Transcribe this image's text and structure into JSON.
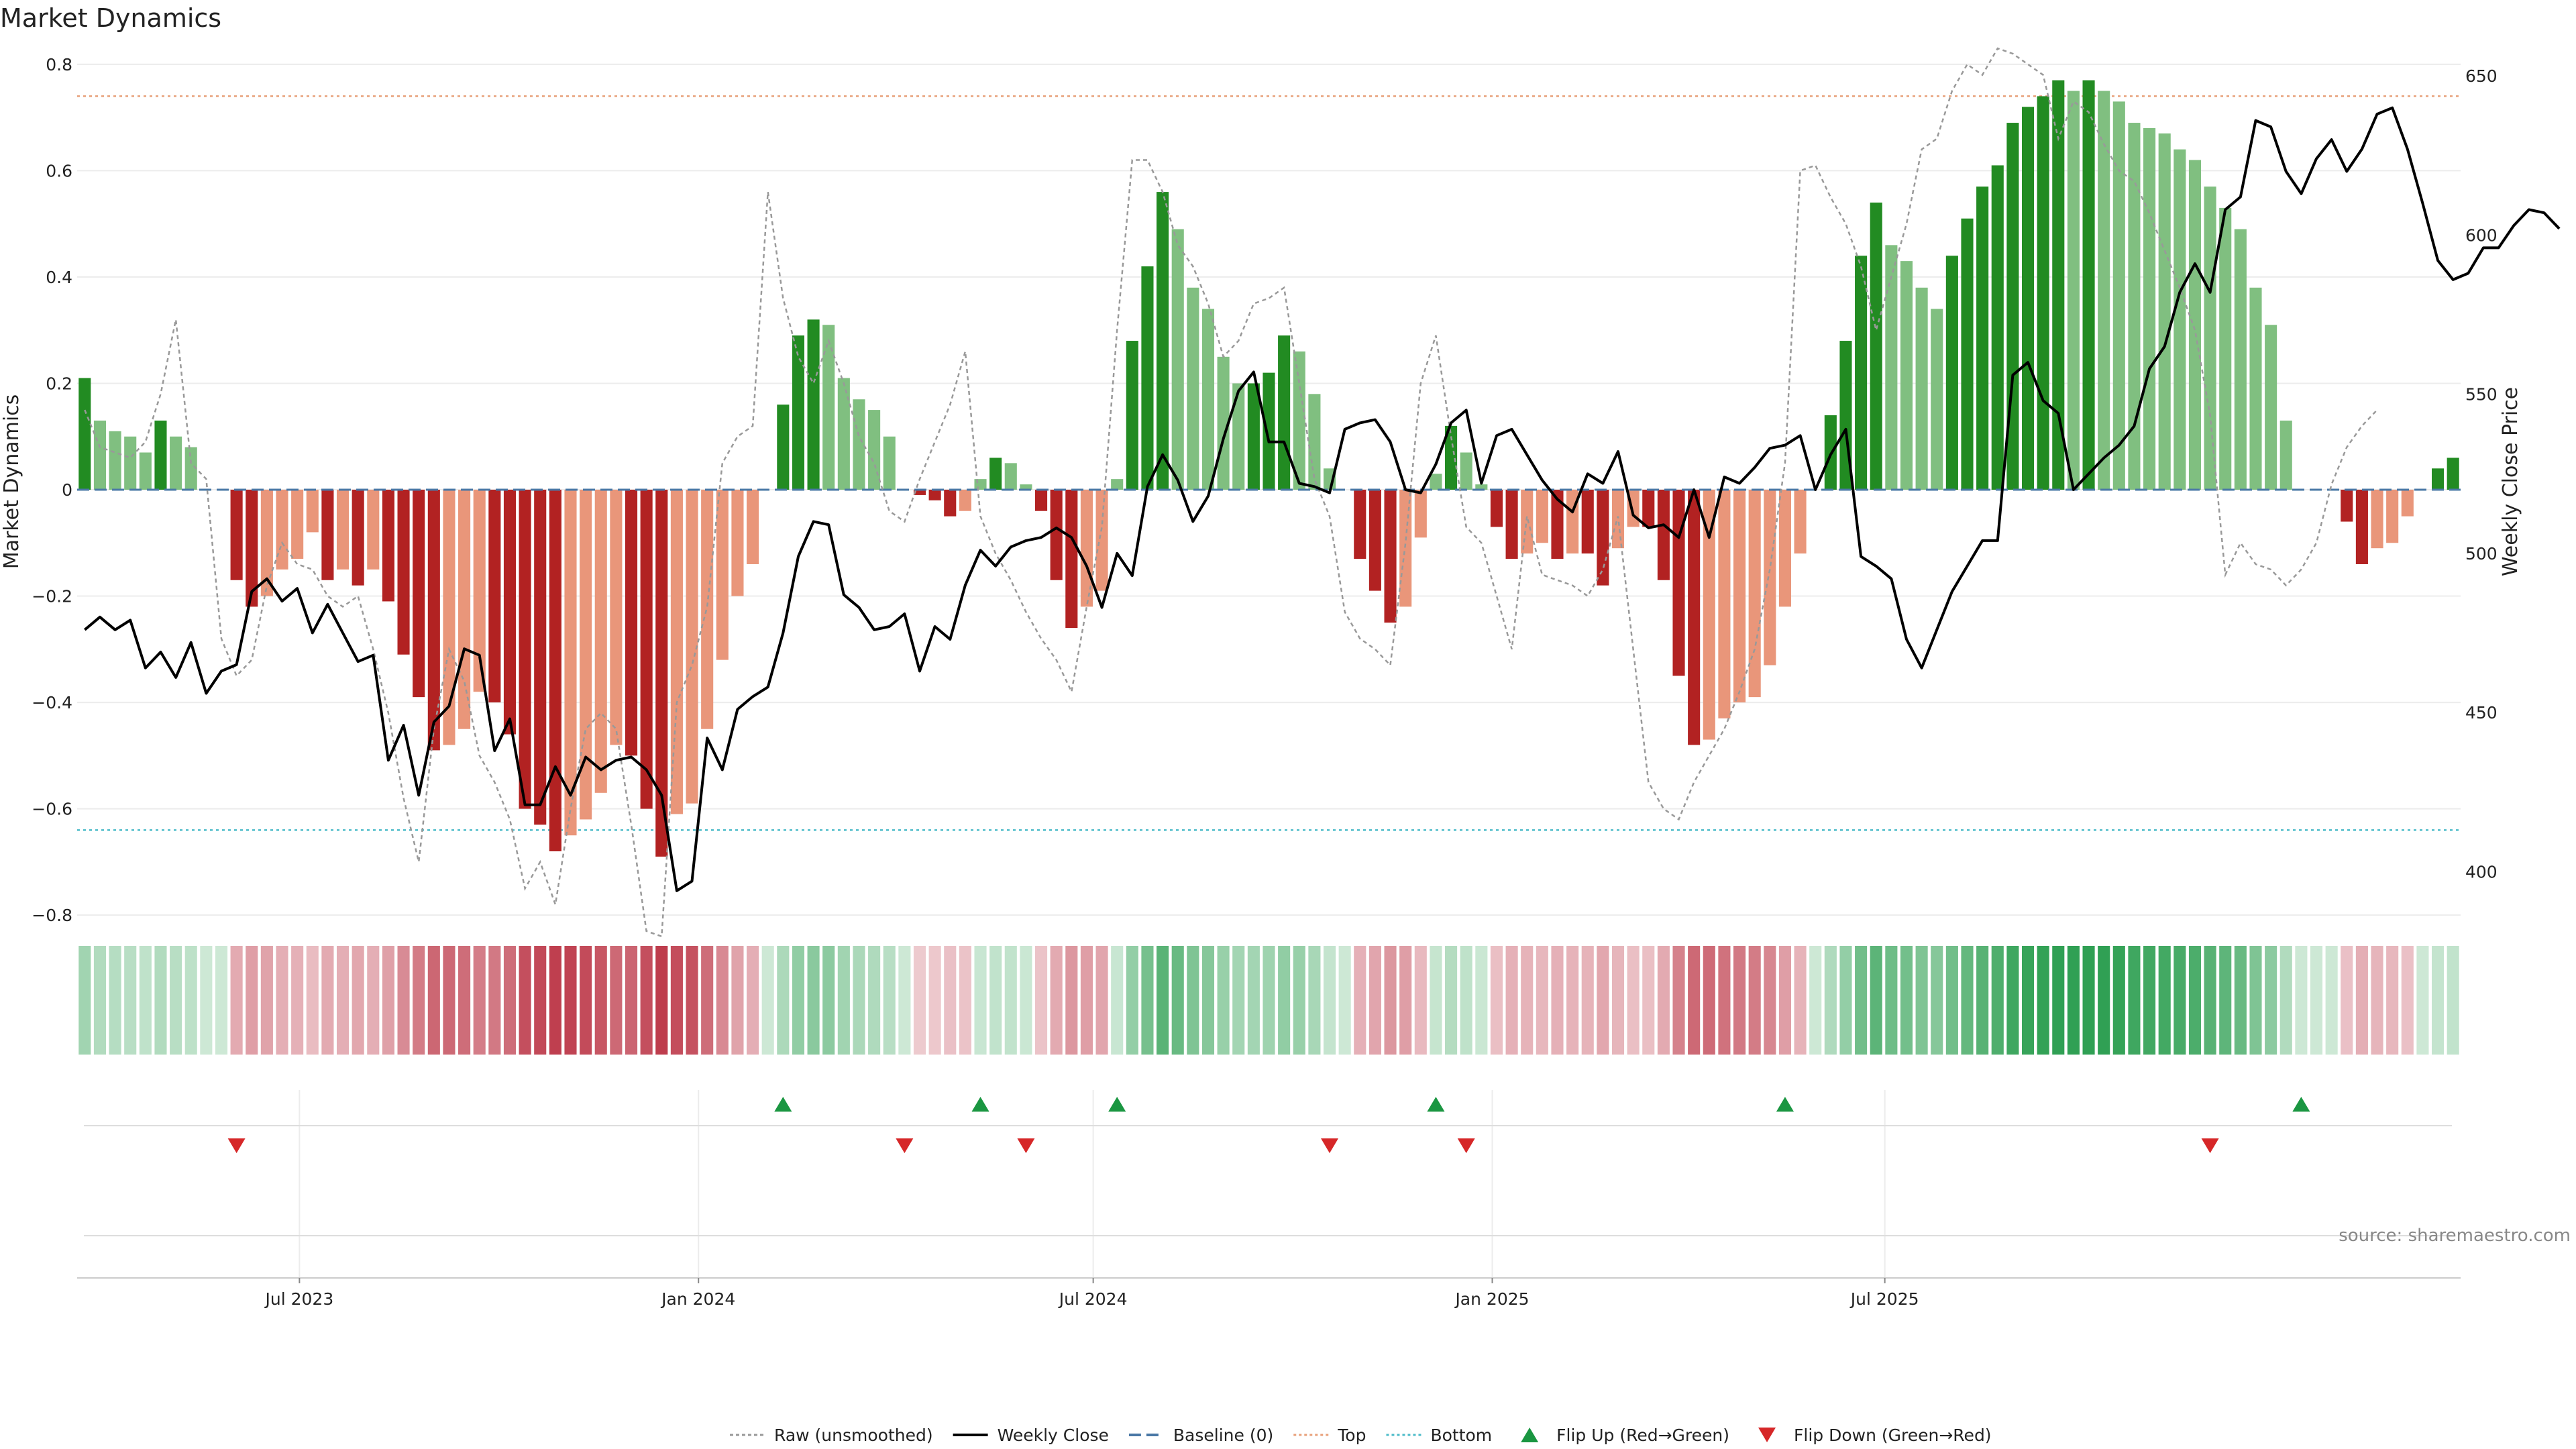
{
  "chart_data": {
    "type": "bar",
    "title": "Market Dynamics",
    "ylabel": "Market Dynamics",
    "y2label": "Weekly Close Price",
    "ylim": [
      -0.82,
      0.82
    ],
    "y2lim": [
      383,
      657
    ],
    "yticks": [
      "0.8",
      "0.6",
      "0.4",
      "0.2",
      "0",
      "−0.2",
      "−0.4",
      "−0.6",
      "−0.8"
    ],
    "yticks_values": [
      0.8,
      0.6,
      0.4,
      0.2,
      0,
      -0.2,
      -0.4,
      -0.6,
      -0.8
    ],
    "y2ticks": [
      "650",
      "600",
      "550",
      "500",
      "450",
      "400"
    ],
    "y2ticks_values": [
      650,
      600,
      550,
      500,
      450,
      400
    ],
    "x_start": "2023-03-24",
    "x_ticks": [
      {
        "label": "Jul 2023",
        "date": "2023-07-01"
      },
      {
        "label": "Jan 2024",
        "date": "2024-01-01"
      },
      {
        "label": "Jul 2024",
        "date": "2024-07-01"
      },
      {
        "label": "Jan 2025",
        "date": "2025-01-01"
      },
      {
        "label": "Jul 2025",
        "date": "2025-07-01"
      }
    ],
    "top_level": 0.74,
    "bottom_level": -0.64,
    "baseline": 0,
    "dynamics": [
      0.21,
      0.13,
      0.11,
      0.1,
      0.07,
      0.13,
      0.1,
      0.08,
      0,
      0,
      -0.17,
      -0.22,
      -0.2,
      -0.15,
      -0.13,
      -0.08,
      -0.17,
      -0.15,
      -0.18,
      -0.15,
      -0.21,
      -0.31,
      -0.39,
      -0.49,
      -0.48,
      -0.45,
      -0.38,
      -0.4,
      -0.46,
      -0.6,
      -0.63,
      -0.68,
      -0.65,
      -0.62,
      -0.57,
      -0.48,
      -0.5,
      -0.6,
      -0.69,
      -0.61,
      -0.59,
      -0.45,
      -0.32,
      -0.2,
      -0.14,
      0,
      0.16,
      0.29,
      0.32,
      0.31,
      0.21,
      0.17,
      0.15,
      0.1,
      0,
      -0.01,
      -0.02,
      -0.05,
      -0.04,
      0.02,
      0.06,
      0.05,
      0.01,
      -0.04,
      -0.17,
      -0.26,
      -0.22,
      -0.19,
      0.02,
      0.28,
      0.42,
      0.56,
      0.49,
      0.38,
      0.34,
      0.25,
      0.2,
      0.2,
      0.22,
      0.29,
      0.26,
      0.18,
      0.04,
      0,
      -0.13,
      -0.19,
      -0.25,
      -0.22,
      -0.09,
      0.03,
      0.12,
      0.07,
      0.01,
      -0.07,
      -0.13,
      -0.12,
      -0.1,
      -0.13,
      -0.12,
      -0.12,
      -0.18,
      -0.11,
      -0.07,
      -0.07,
      -0.17,
      -0.35,
      -0.48,
      -0.47,
      -0.43,
      -0.4,
      -0.39,
      -0.33,
      -0.22,
      -0.12,
      0,
      0.14,
      0.28,
      0.44,
      0.54,
      0.46,
      0.43,
      0.38,
      0.34,
      0.44,
      0.51,
      0.57,
      0.61,
      0.69,
      0.72,
      0.74,
      0.77,
      0.75,
      0.77,
      0.75,
      0.73,
      0.69,
      0.68,
      0.67,
      0.64,
      0.62,
      0.57,
      0.53,
      0.49,
      0.38,
      0.31,
      0.13,
      0,
      0,
      0,
      -0.06,
      -0.14,
      -0.11,
      -0.1,
      -0.05,
      0,
      0.04,
      0.06
    ],
    "raw": [
      0.15,
      0.08,
      0.07,
      0.06,
      0.09,
      0.18,
      0.32,
      0.05,
      0.02,
      -0.28,
      -0.35,
      -0.32,
      -0.18,
      -0.1,
      -0.14,
      -0.15,
      -0.2,
      -0.22,
      -0.2,
      -0.3,
      -0.42,
      -0.58,
      -0.7,
      -0.45,
      -0.3,
      -0.36,
      -0.5,
      -0.55,
      -0.62,
      -0.75,
      -0.7,
      -0.78,
      -0.6,
      -0.45,
      -0.42,
      -0.45,
      -0.63,
      -0.83,
      -0.84,
      -0.4,
      -0.33,
      -0.22,
      0.05,
      0.1,
      0.12,
      0.56,
      0.36,
      0.25,
      0.2,
      0.28,
      0.2,
      0.1,
      0.05,
      -0.04,
      -0.06,
      0.02,
      0.09,
      0.16,
      0.26,
      -0.05,
      -0.12,
      -0.17,
      -0.23,
      -0.28,
      -0.32,
      -0.38,
      -0.22,
      -0.07,
      0.3,
      0.62,
      0.62,
      0.56,
      0.46,
      0.42,
      0.35,
      0.25,
      0.28,
      0.35,
      0.36,
      0.38,
      0.2,
      0.02,
      -0.05,
      -0.23,
      -0.28,
      -0.3,
      -0.33,
      -0.1,
      0.2,
      0.29,
      0.1,
      -0.07,
      -0.1,
      -0.2,
      -0.3,
      -0.05,
      -0.16,
      -0.17,
      -0.18,
      -0.2,
      -0.15,
      -0.05,
      -0.3,
      -0.55,
      -0.6,
      -0.62,
      -0.55,
      -0.5,
      -0.45,
      -0.38,
      -0.3,
      -0.15,
      0.05,
      0.6,
      0.61,
      0.55,
      0.5,
      0.42,
      0.3,
      0.4,
      0.5,
      0.64,
      0.66,
      0.75,
      0.8,
      0.78,
      0.83,
      0.82,
      0.8,
      0.78,
      0.66,
      0.73,
      0.71,
      0.65,
      0.6,
      0.58,
      0.52,
      0.45,
      0.38,
      0.3,
      0.14,
      -0.16,
      -0.1,
      -0.14,
      -0.15,
      -0.18,
      -0.15,
      -0.1,
      0.01,
      0.08,
      0.12,
      0.15
    ],
    "close": [
      476,
      480,
      476,
      479,
      464,
      469,
      461,
      472,
      456,
      463,
      465,
      488,
      492,
      485,
      489,
      475,
      484,
      475,
      466,
      468,
      435,
      446,
      424,
      447,
      452,
      470,
      468,
      438,
      448,
      421,
      421,
      433,
      424,
      436,
      432,
      435,
      436,
      432,
      424,
      394,
      397,
      442,
      432,
      451,
      455,
      458,
      475,
      499,
      510,
      509,
      487,
      483,
      476,
      477,
      481,
      463,
      477,
      473,
      490,
      501,
      496,
      502,
      504,
      505,
      508,
      505,
      496,
      483,
      500,
      493,
      521,
      531,
      523,
      510,
      518,
      536,
      551,
      557,
      535,
      535,
      522,
      521,
      519,
      539,
      541,
      542,
      535,
      520,
      519,
      528,
      541,
      545,
      522,
      537,
      539,
      531,
      523,
      517,
      513,
      525,
      522,
      532,
      512,
      508,
      509,
      505,
      520,
      505,
      524,
      522,
      527,
      533,
      534,
      537,
      520,
      531,
      539,
      499,
      496,
      492,
      473,
      464,
      476,
      488,
      496,
      504,
      504,
      556,
      560,
      548,
      544,
      520,
      525,
      530,
      534,
      540,
      558,
      565,
      582,
      591,
      582,
      608,
      612,
      636,
      634,
      620,
      613,
      624,
      630,
      620,
      627,
      638,
      640,
      627,
      610,
      592,
      586,
      588,
      596,
      596,
      603,
      608,
      607,
      602
    ],
    "flip_up": [
      46,
      59,
      68,
      89,
      112,
      146
    ],
    "flip_down": [
      10,
      54,
      62,
      82,
      91,
      140
    ],
    "source": "source: sharemaestro.com",
    "legend": [
      {
        "label": "Raw (unsmoothed)",
        "style": "raw",
        "color": "#999999"
      },
      {
        "label": "Weekly Close",
        "style": "close",
        "color": "#000000"
      },
      {
        "label": "Baseline (0)",
        "style": "baseline",
        "color": "#4a78a6"
      },
      {
        "label": "Top",
        "style": "top",
        "color": "#e8a07a"
      },
      {
        "label": "Bottom",
        "style": "bottom",
        "color": "#4dbcc9"
      },
      {
        "label": "Flip Up (Red→Green)",
        "style": "up",
        "color": "#1a9641"
      },
      {
        "label": "Flip Down (Green→Red)",
        "style": "down",
        "color": "#d62728"
      }
    ],
    "colors": {
      "green_strong": "#228b22",
      "green_weak": "#80bf80",
      "red_strong": "#b22222",
      "red_weak": "#e9967a",
      "strip_green": "#1a9641",
      "strip_red": "#b2182b",
      "top": "#e8a07a",
      "bottom": "#4dbcc9",
      "baseline": "#4a78a6",
      "raw": "#999999",
      "close": "#000000",
      "flip_up": "#1a9641",
      "flip_down": "#d62728"
    }
  }
}
